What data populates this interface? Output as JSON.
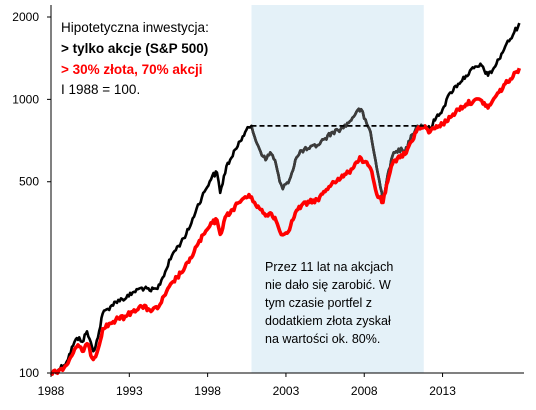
{
  "chart_data": {
    "type": "line",
    "x_axis": {
      "range": [
        1988,
        2018.2
      ],
      "ticks": [
        1988,
        1993,
        1998,
        2003,
        2008,
        2013
      ],
      "tick_labels": [
        "1988",
        "1993",
        "1998",
        "2003",
        "2008",
        "2013"
      ]
    },
    "y_axis": {
      "scale": "log",
      "range": [
        100,
        2000
      ],
      "ticks": [
        100,
        500,
        1000,
        2000
      ],
      "tick_labels": [
        "100",
        "500",
        "1000",
        "2000"
      ]
    },
    "grid": false,
    "legend": {
      "placement": "top-left",
      "lines": [
        "Hipotetyczna inwestycja:",
        "> tylko akcje (S&P 500)",
        "> 30% złota, 70% akcji",
        "I 1988 = 100."
      ]
    },
    "shaded_period": {
      "x": [
        2000.8,
        2011.8
      ],
      "color": "#e4f1f8"
    },
    "flat_level_line": {
      "x": [
        2000.8,
        2011.8
      ],
      "y": 800,
      "style": "dashed",
      "color": "#000000"
    },
    "annotation": {
      "lines": [
        "Przez 11 lat na akcjach",
        "nie dało się zarobić. W",
        "tym czasie portfel z",
        "dodatkiem złota zyskał",
        "na wartości ok. 80%."
      ]
    },
    "series": [
      {
        "color": "#000000",
        "points": [
          [
            1988.0,
            100
          ],
          [
            1988.5,
            103
          ],
          [
            1989.0,
            110
          ],
          [
            1989.5,
            130
          ],
          [
            1989.8,
            135
          ],
          [
            1990.0,
            130
          ],
          [
            1990.3,
            142
          ],
          [
            1990.7,
            120
          ],
          [
            1991.0,
            135
          ],
          [
            1991.3,
            165
          ],
          [
            1991.8,
            175
          ],
          [
            1992.3,
            185
          ],
          [
            1992.8,
            188
          ],
          [
            1993.3,
            198
          ],
          [
            1993.8,
            205
          ],
          [
            1994.3,
            200
          ],
          [
            1994.8,
            203
          ],
          [
            1995.3,
            235
          ],
          [
            1995.8,
            275
          ],
          [
            1996.3,
            300
          ],
          [
            1996.8,
            335
          ],
          [
            1997.3,
            400
          ],
          [
            1997.8,
            460
          ],
          [
            1998.3,
            525
          ],
          [
            1998.6,
            540
          ],
          [
            1998.8,
            455
          ],
          [
            1999.2,
            570
          ],
          [
            1999.6,
            620
          ],
          [
            2000.0,
            700
          ],
          [
            2000.4,
            760
          ],
          [
            2000.7,
            790
          ],
          [
            2000.8,
            800
          ],
          [
            2001.0,
            730
          ],
          [
            2001.3,
            660
          ],
          [
            2001.7,
            600
          ],
          [
            2002.0,
            640
          ],
          [
            2002.3,
            600
          ],
          [
            2002.6,
            500
          ],
          [
            2002.8,
            470
          ],
          [
            2003.0,
            490
          ],
          [
            2003.3,
            520
          ],
          [
            2003.6,
            600
          ],
          [
            2004.0,
            650
          ],
          [
            2004.5,
            660
          ],
          [
            2005.0,
            680
          ],
          [
            2005.5,
            720
          ],
          [
            2006.0,
            760
          ],
          [
            2006.5,
            780
          ],
          [
            2007.0,
            820
          ],
          [
            2007.5,
            900
          ],
          [
            2007.8,
            920
          ],
          [
            2008.0,
            850
          ],
          [
            2008.4,
            760
          ],
          [
            2008.8,
            560
          ],
          [
            2009.2,
            430
          ],
          [
            2009.5,
            530
          ],
          [
            2009.8,
            620
          ],
          [
            2010.2,
            660
          ],
          [
            2010.6,
            640
          ],
          [
            2011.0,
            740
          ],
          [
            2011.4,
            800
          ],
          [
            2011.8,
            800
          ],
          [
            2012.2,
            780
          ],
          [
            2012.6,
            860
          ],
          [
            2013.0,
            920
          ],
          [
            2013.5,
            1060
          ],
          [
            2014.0,
            1140
          ],
          [
            2014.5,
            1220
          ],
          [
            2015.0,
            1300
          ],
          [
            2015.5,
            1330
          ],
          [
            2015.9,
            1220
          ],
          [
            2016.2,
            1280
          ],
          [
            2016.6,
            1400
          ],
          [
            2017.0,
            1560
          ],
          [
            2017.5,
            1720
          ],
          [
            2017.9,
            1900
          ]
        ]
      },
      {
        "color": "#ff0000",
        "points": [
          [
            1988.0,
            100
          ],
          [
            1988.5,
            102
          ],
          [
            1989.0,
            107
          ],
          [
            1989.5,
            122
          ],
          [
            1989.8,
            125
          ],
          [
            1990.0,
            120
          ],
          [
            1990.3,
            128
          ],
          [
            1990.7,
            112
          ],
          [
            1991.0,
            122
          ],
          [
            1991.3,
            145
          ],
          [
            1991.8,
            152
          ],
          [
            1992.3,
            158
          ],
          [
            1992.8,
            161
          ],
          [
            1993.3,
            170
          ],
          [
            1993.8,
            175
          ],
          [
            1994.3,
            170
          ],
          [
            1994.8,
            172
          ],
          [
            1995.3,
            193
          ],
          [
            1995.8,
            216
          ],
          [
            1996.3,
            232
          ],
          [
            1996.8,
            254
          ],
          [
            1997.3,
            291
          ],
          [
            1997.8,
            323
          ],
          [
            1998.3,
            353
          ],
          [
            1998.6,
            362
          ],
          [
            1998.8,
            321
          ],
          [
            1999.2,
            376
          ],
          [
            1999.6,
            396
          ],
          [
            2000.0,
            420
          ],
          [
            2000.4,
            440
          ],
          [
            2000.8,
            440
          ],
          [
            2001.0,
            420
          ],
          [
            2001.3,
            400
          ],
          [
            2001.7,
            375
          ],
          [
            2002.0,
            385
          ],
          [
            2002.3,
            370
          ],
          [
            2002.6,
            330
          ],
          [
            2002.8,
            320
          ],
          [
            2003.0,
            325
          ],
          [
            2003.3,
            345
          ],
          [
            2003.6,
            385
          ],
          [
            2004.0,
            410
          ],
          [
            2004.5,
            420
          ],
          [
            2005.0,
            430
          ],
          [
            2005.5,
            460
          ],
          [
            2006.0,
            500
          ],
          [
            2006.5,
            515
          ],
          [
            2007.0,
            540
          ],
          [
            2007.5,
            590
          ],
          [
            2007.8,
            610
          ],
          [
            2008.0,
            590
          ],
          [
            2008.4,
            560
          ],
          [
            2008.8,
            450
          ],
          [
            2009.2,
            420
          ],
          [
            2009.5,
            500
          ],
          [
            2009.8,
            580
          ],
          [
            2010.2,
            620
          ],
          [
            2010.6,
            630
          ],
          [
            2011.0,
            700
          ],
          [
            2011.4,
            780
          ],
          [
            2011.8,
            790
          ],
          [
            2012.2,
            760
          ],
          [
            2012.6,
            800
          ],
          [
            2013.0,
            810
          ],
          [
            2013.5,
            860
          ],
          [
            2014.0,
            920
          ],
          [
            2014.5,
            960
          ],
          [
            2015.0,
            990
          ],
          [
            2015.5,
            990
          ],
          [
            2015.9,
            930
          ],
          [
            2016.2,
            990
          ],
          [
            2016.6,
            1060
          ],
          [
            2017.0,
            1140
          ],
          [
            2017.5,
            1210
          ],
          [
            2017.9,
            1300
          ]
        ]
      }
    ]
  }
}
